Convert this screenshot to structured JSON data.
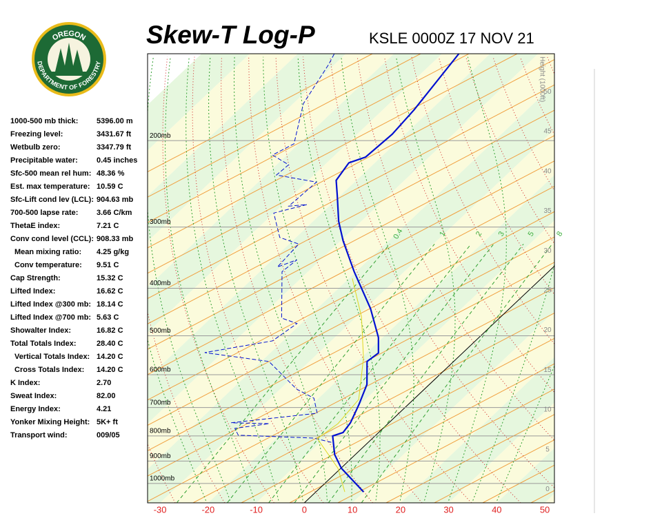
{
  "logo": {
    "top": "OREGON",
    "bottom": "DEPARTMENT OF FORESTRY"
  },
  "indices": [
    {
      "label": "1000-500 mb thick:",
      "value": "5396.00 m"
    },
    {
      "label": "Freezing level:",
      "value": "3431.67 ft"
    },
    {
      "label": "Wetbulb zero:",
      "value": "3347.79 ft"
    },
    {
      "label": "Precipitable water:",
      "value": "0.45 inches"
    },
    {
      "label": "Sfc-500 mean rel hum:",
      "value": "48.36 %"
    },
    {
      "label": "Est. max temperature:",
      "value": "10.59 C"
    },
    {
      "label": "Sfc-Lift cond lev (LCL):",
      "value": "904.63 mb"
    },
    {
      "label": "700-500 lapse rate:",
      "value": "3.66 C/km"
    },
    {
      "label": "ThetaE index:",
      "value": "7.21 C"
    },
    {
      "label": "Conv cond level (CCL):",
      "value": "908.33 mb"
    },
    {
      "label": "Mean mixing ratio:",
      "value": "4.25 g/kg"
    },
    {
      "label": "Conv temperature:",
      "value": "9.51 C"
    },
    {
      "label": "Cap Strength:",
      "value": "15.32 C"
    },
    {
      "label": "Lifted Index:",
      "value": "16.62 C"
    },
    {
      "label": "Lifted Index @300 mb:",
      "value": "18.14 C"
    },
    {
      "label": "Lifted Index @700 mb:",
      "value": "5.63 C"
    },
    {
      "label": "Showalter Index:",
      "value": "16.82 C"
    },
    {
      "label": "Total Totals Index:",
      "value": "28.40 C"
    },
    {
      "label": "Vertical Totals Index:",
      "value": "14.20 C"
    },
    {
      "label": "Cross Totals Index:",
      "value": "14.20 C"
    },
    {
      "label": "K Index:",
      "value": "2.70"
    },
    {
      "label": "Sweat Index:",
      "value": "82.00"
    },
    {
      "label": "Energy Index:",
      "value": "4.21"
    },
    {
      "label": "Yonker Mixing Height:",
      "value": "5K+ ft"
    },
    {
      "label": "Transport wind:",
      "value": "009/05"
    }
  ],
  "chart_data": {
    "type": "skew-t",
    "title": "Skew-T Log-P",
    "subtitle": "KSLE 0000Z 17 NOV 21",
    "xlim": [
      -32.6,
      52
    ],
    "xticks": [
      -30,
      -20,
      -10,
      0,
      10,
      20,
      30,
      40,
      50
    ],
    "ylim": [
      1095,
      133
    ],
    "log_y": true,
    "yticks": [
      {
        "value": 200,
        "label": "200mb"
      },
      {
        "value": 300,
        "label": "300mb"
      },
      {
        "value": 400,
        "label": "400mb"
      },
      {
        "value": 500,
        "label": "500mb"
      },
      {
        "value": 600,
        "label": "600mb"
      },
      {
        "value": 700,
        "label": "700mb"
      },
      {
        "value": 800,
        "label": "800mb"
      },
      {
        "value": 900,
        "label": "900mb"
      },
      {
        "value": 1000,
        "label": "1000mb"
      }
    ],
    "grid": true,
    "y2_label": "Height (1000ft)",
    "y2lim": [
      -1.7,
      54.8
    ],
    "y2ticks": [
      0,
      5,
      10,
      15,
      20,
      25,
      30,
      35,
      40,
      45,
      50
    ],
    "mixing_ratio_labels": [
      0.4,
      1,
      2,
      3,
      5,
      8
    ],
    "series": [
      {
        "color": "#0010d0",
        "style": "solid",
        "pressure": [
          1040,
          931,
          873,
          800,
          787,
          752,
          691,
          628,
          564,
          542,
          504,
          440,
          370,
          320,
          292,
          259,
          241,
          222,
          216,
          194,
          173,
          133
        ],
        "values": [
          9.9,
          0.1,
          -4.3,
          -8.8,
          -7.4,
          -8.0,
          -10.2,
          -13.0,
          -18.0,
          -17.5,
          -20.9,
          -28.9,
          -40.4,
          -49.5,
          -54.7,
          -60.6,
          -64.2,
          -65.4,
          -63.2,
          -62.7,
          -63.5,
          -66.5
        ]
      },
      {
        "color": "#0010d0",
        "style": "dashed",
        "pressure": [
          824,
          808,
          797,
          772,
          755,
          752,
          719,
          670,
          642,
          564,
          541,
          512,
          472,
          460,
          370,
          350,
          362,
          325,
          315,
          281,
          270,
          272,
          243,
          235,
          224,
          214,
          203,
          168,
          140,
          133
        ],
        "values": [
          -7.7,
          -12.3,
          -28.6,
          -30.8,
          -24.7,
          -32.8,
          -17.0,
          -21.0,
          -26.6,
          -38.4,
          -53.7,
          -42.2,
          -40.9,
          -45.3,
          -55.4,
          -54.9,
          -57.4,
          -58.0,
          -63.4,
          -70.0,
          -65.0,
          -68.4,
          -67.9,
          -77.8,
          -77.5,
          -83.0,
          -81.0,
          -87.9,
          -91.2,
          -92.4
        ]
      },
      {
        "color": "#e0d820",
        "style": "thin",
        "pressure": [
          1040,
          931,
          810,
          755,
          674,
          555,
          457,
          382
        ],
        "values": [
          6.0,
          -0.6,
          -11.4,
          -10.4,
          -11.4,
          -19.5,
          -29.0,
          -39.3
        ]
      }
    ]
  }
}
